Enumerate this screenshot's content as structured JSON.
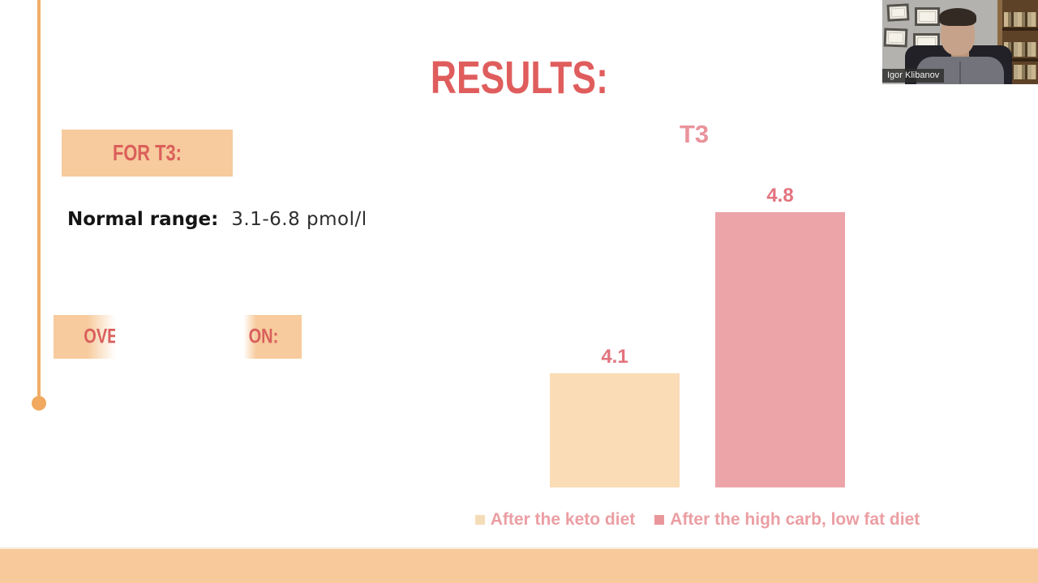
{
  "slide": {
    "title": "RESULTS:",
    "for_t3_label": "FOR T3:",
    "normal_range_label": "Normal range:",
    "normal_range_value": "3.1-6.8 pmol/l",
    "partial_box_left_text": "OVE",
    "partial_box_right_text": "ON:"
  },
  "chart_data": {
    "type": "bar",
    "title": "T3",
    "categories": [
      "After the keto diet",
      "After the high carb, low fat diet"
    ],
    "values": [
      4.1,
      4.8
    ],
    "data_labels": [
      "4.1",
      "4.8"
    ],
    "series_colors": [
      "#fadcb6",
      "#eda4a9"
    ],
    "legend_position": "bottom",
    "grid": false,
    "axes_visible": false
  },
  "legend": {
    "items": [
      {
        "label": "After the keto diet",
        "color": "#f5dcb8"
      },
      {
        "label": "After the high carb, low fat diet",
        "color": "#e9969b"
      }
    ]
  },
  "webcam": {
    "name_label": "Igor Klibanov"
  },
  "colors": {
    "title_text": "#e05d5d",
    "highlight_box": "#f7cb9d",
    "accent_line": "#f1ad68",
    "chart_text": "#ea939b",
    "value_text": "#e2737e",
    "bottom_band": "#f8ca9b"
  }
}
